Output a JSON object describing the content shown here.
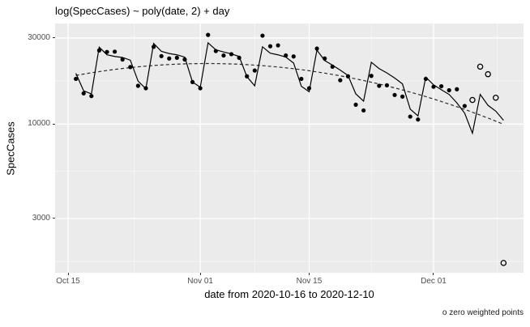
{
  "chart_data": {
    "type": "line",
    "title": "log(SpecCases) ~ poly(date, 2) + day",
    "xlabel": "date from 2020-10-16 to 2020-12-10",
    "ylabel": "SpecCases",
    "caption": "o zero weighted points",
    "legend_position": "none",
    "grid": "on",
    "x_axis": {
      "scale": "date",
      "origin_date": "2020-10-15",
      "ticks": [
        {
          "label": "Oct 15",
          "date": "2020-10-15"
        },
        {
          "label": "Nov 01",
          "date": "2020-11-01"
        },
        {
          "label": "Nov 15",
          "date": "2020-11-15"
        },
        {
          "label": "Dec 01",
          "date": "2020-12-01"
        }
      ],
      "minor_days_after_origin": [
        8.5,
        24,
        39,
        55.2
      ],
      "range_days_after_origin": [
        -1.67,
        58.57
      ]
    },
    "y_axis": {
      "scale": "log10",
      "ticks": [
        {
          "label": "30000",
          "value": 30000
        },
        {
          "label": "10000",
          "value": 10000
        },
        {
          "label": "3000",
          "value": 3000
        }
      ],
      "minor_values": [
        17321,
        5477,
        1732
      ],
      "range": [
        1500,
        36100
      ]
    },
    "series": {
      "observed_points": {
        "name": "observed daily SpecCases (filled points)",
        "marker": "filled-circle",
        "dates": [
          "2020-10-16",
          "2020-10-17",
          "2020-10-18",
          "2020-10-19",
          "2020-10-20",
          "2020-10-21",
          "2020-10-22",
          "2020-10-23",
          "2020-10-24",
          "2020-10-25",
          "2020-10-26",
          "2020-10-27",
          "2020-10-28",
          "2020-10-29",
          "2020-10-30",
          "2020-10-31",
          "2020-11-01",
          "2020-11-02",
          "2020-11-03",
          "2020-11-04",
          "2020-11-05",
          "2020-11-06",
          "2020-11-07",
          "2020-11-08",
          "2020-11-09",
          "2020-11-10",
          "2020-11-11",
          "2020-11-12",
          "2020-11-13",
          "2020-11-14",
          "2020-11-15",
          "2020-11-16",
          "2020-11-17",
          "2020-11-18",
          "2020-11-19",
          "2020-11-20",
          "2020-11-21",
          "2020-11-22",
          "2020-11-23",
          "2020-11-24",
          "2020-11-25",
          "2020-11-26",
          "2020-11-27",
          "2020-11-28",
          "2020-11-29",
          "2020-11-30",
          "2020-12-01",
          "2020-12-02",
          "2020-12-03",
          "2020-12-04",
          "2020-12-05"
        ],
        "values": [
          17800,
          14800,
          14300,
          25600,
          25100,
          25200,
          22800,
          20700,
          16300,
          15800,
          26800,
          23800,
          23100,
          23300,
          22800,
          17100,
          15800,
          31200,
          25400,
          24000,
          24400,
          23300,
          18400,
          19800,
          30900,
          27000,
          27300,
          24000,
          23700,
          17800,
          15800,
          26200,
          23100,
          20800,
          17500,
          18400,
          12800,
          11900,
          18500,
          16300,
          16400,
          14500,
          14200,
          11000,
          10600,
          17800,
          16100,
          16200,
          15400,
          15600,
          12600
        ]
      },
      "zero_weighted_points": {
        "name": "zero weighted points (open circles)",
        "marker": "open-circle",
        "dates": [
          "2020-12-06",
          "2020-12-07",
          "2020-12-08",
          "2020-12-09",
          "2020-12-10"
        ],
        "values": [
          13600,
          20800,
          18900,
          14000,
          1700
        ]
      },
      "fitted_line": {
        "name": "model fit log(SpecCases) ~ poly(date,2) + day (solid line)",
        "style": "solid",
        "dates": [
          "2020-10-16",
          "2020-10-17",
          "2020-10-18",
          "2020-10-19",
          "2020-10-20",
          "2020-10-21",
          "2020-10-22",
          "2020-10-23",
          "2020-10-24",
          "2020-10-25",
          "2020-10-26",
          "2020-10-27",
          "2020-10-28",
          "2020-10-29",
          "2020-10-30",
          "2020-10-31",
          "2020-11-01",
          "2020-11-02",
          "2020-11-03",
          "2020-11-04",
          "2020-11-05",
          "2020-11-06",
          "2020-11-07",
          "2020-11-08",
          "2020-11-09",
          "2020-11-10",
          "2020-11-11",
          "2020-11-12",
          "2020-11-13",
          "2020-11-14",
          "2020-11-15",
          "2020-11-16",
          "2020-11-17",
          "2020-11-18",
          "2020-11-19",
          "2020-11-20",
          "2020-11-21",
          "2020-11-22",
          "2020-11-23",
          "2020-11-24",
          "2020-11-25",
          "2020-11-26",
          "2020-11-27",
          "2020-11-28",
          "2020-11-29",
          "2020-11-30",
          "2020-12-01",
          "2020-12-02",
          "2020-12-03",
          "2020-12-04",
          "2020-12-05",
          "2020-12-06",
          "2020-12-07",
          "2020-12-08",
          "2020-12-09",
          "2020-12-10"
        ],
        "values": [
          19100,
          15300,
          14700,
          26700,
          24200,
          23700,
          23400,
          22600,
          17300,
          15700,
          28000,
          25300,
          24600,
          24200,
          23500,
          17100,
          16000,
          28200,
          25800,
          25100,
          24500,
          23700,
          18300,
          16300,
          26800,
          24700,
          24200,
          23500,
          21800,
          16200,
          15100,
          25700,
          22500,
          21200,
          19900,
          18600,
          14700,
          13400,
          22000,
          20300,
          19200,
          18000,
          16700,
          12100,
          11100,
          18200,
          16500,
          15500,
          14600,
          13100,
          11500,
          8900,
          14600,
          12700,
          11800,
          10500
        ]
      },
      "trend_line": {
        "name": "quadratic date trend (dashed line)",
        "style": "dashed",
        "dates": [
          "2020-10-16",
          "2020-10-17",
          "2020-10-18",
          "2020-10-19",
          "2020-10-20",
          "2020-10-21",
          "2020-10-22",
          "2020-10-23",
          "2020-10-24",
          "2020-10-25",
          "2020-10-26",
          "2020-10-27",
          "2020-10-28",
          "2020-10-29",
          "2020-10-30",
          "2020-10-31",
          "2020-11-01",
          "2020-11-02",
          "2020-11-03",
          "2020-11-04",
          "2020-11-05",
          "2020-11-06",
          "2020-11-07",
          "2020-11-08",
          "2020-11-09",
          "2020-11-10",
          "2020-11-11",
          "2020-11-12",
          "2020-11-13",
          "2020-11-14",
          "2020-11-15",
          "2020-11-16",
          "2020-11-17",
          "2020-11-18",
          "2020-11-19",
          "2020-11-20",
          "2020-11-21",
          "2020-11-22",
          "2020-11-23",
          "2020-11-24",
          "2020-11-25",
          "2020-11-26",
          "2020-11-27",
          "2020-11-28",
          "2020-11-29",
          "2020-11-30",
          "2020-12-01",
          "2020-12-02",
          "2020-12-03",
          "2020-12-04",
          "2020-12-05",
          "2020-12-06",
          "2020-12-07",
          "2020-12-08",
          "2020-12-09",
          "2020-12-10"
        ],
        "values": [
          18600,
          18930,
          19250,
          19540,
          19820,
          20090,
          20330,
          20560,
          20760,
          20950,
          21110,
          21260,
          21380,
          21480,
          21560,
          21610,
          21640,
          21650,
          21640,
          21600,
          21540,
          21460,
          21350,
          21220,
          21070,
          20900,
          20710,
          20500,
          20270,
          20020,
          19750,
          19460,
          19160,
          18840,
          18510,
          18160,
          17810,
          17440,
          17060,
          16670,
          16280,
          15870,
          15460,
          15040,
          14620,
          14200,
          13770,
          13340,
          12910,
          12480,
          12060,
          11630,
          11210,
          10800,
          10380,
          9970
        ]
      }
    },
    "colors": {
      "panel_bg": "#EBEBEB",
      "grid_major": "#FFFFFF",
      "grid_minor": "#F7F7F7",
      "fitted_line": "#000000",
      "trend_line": "#2b2b2b",
      "point": "#000000",
      "tick_label": "#4D4D4D",
      "title_text": "#000000"
    }
  }
}
